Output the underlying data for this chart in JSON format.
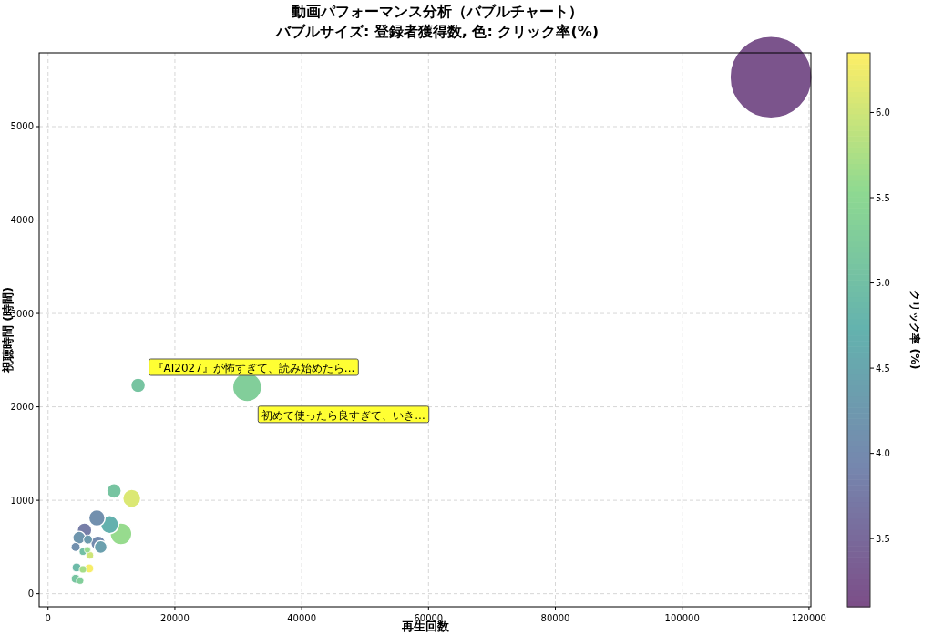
{
  "chart_data": {
    "type": "bubble",
    "title": "動画パフォーマンス分析（バブルチャート）",
    "subtitle": "バブルサイズ: 登録者獲得数, 色: クリック率(%)",
    "xlabel": "再生回数",
    "ylabel": "視聴時間 (時間)",
    "clabel": "クリック率 (%)",
    "x": [
      114000,
      14200,
      31400,
      10400,
      13200,
      7700,
      9700,
      11500,
      5750,
      7900,
      4900,
      4350,
      8300,
      6300,
      5500,
      6600,
      4500,
      6500,
      5500,
      4350,
      5050,
      6200
    ],
    "values": [
      5530,
      2230,
      2210,
      1100,
      1020,
      810,
      740,
      640,
      680,
      540,
      600,
      500,
      500,
      580,
      450,
      410,
      280,
      270,
      260,
      160,
      140,
      470
    ],
    "sizes": [
      1,
      0.032,
      0.126,
      0.032,
      0.049,
      0.04,
      0.049,
      0.071,
      0.032,
      0.032,
      0.024,
      0.012,
      0.024,
      0.012,
      0.008,
      0.008,
      0.012,
      0.012,
      0.008,
      0.012,
      0.008,
      0.006
    ],
    "cvalues": [
      3.2,
      5.1,
      5.3,
      5.1,
      6.1,
      4.1,
      4.7,
      5.6,
      3.8,
      4.0,
      4.2,
      4.1,
      4.4,
      4.3,
      5.0,
      6.0,
      4.9,
      6.3,
      5.7,
      5.1,
      5.3,
      5.6
    ],
    "clim": [
      3.1,
      6.35
    ],
    "cticks": [
      {
        "value": 3.5,
        "label": "3.5"
      },
      {
        "value": 4,
        "label": "4.0"
      },
      {
        "value": 4.5,
        "label": "4.5"
      },
      {
        "value": 5,
        "label": "5.0"
      },
      {
        "value": 5.5,
        "label": "5.5"
      },
      {
        "value": 6,
        "label": "6.0"
      }
    ],
    "xlim": [
      -1400,
      120300
    ],
    "ylim": [
      -140,
      5790
    ],
    "xticks": [
      0,
      20000,
      40000,
      60000,
      80000,
      100000,
      120000
    ],
    "yticks": [
      0,
      1000,
      2000,
      3000,
      4000,
      5000
    ],
    "grid": true,
    "annotations": [
      {
        "text": "『AI2027』が怖すぎて、読み始めたら...",
        "x": 14200,
        "y": 2230
      },
      {
        "text": "初めて使ったら良すぎて、いき...",
        "x": 31400,
        "y": 2212
      }
    ]
  }
}
